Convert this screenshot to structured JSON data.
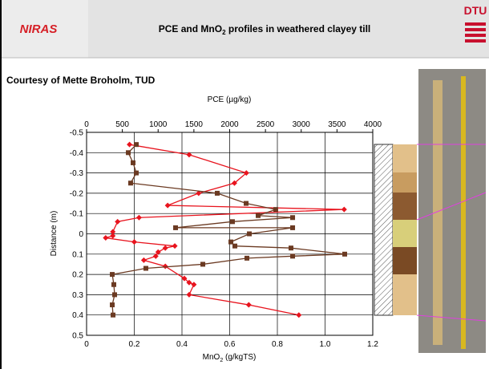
{
  "header": {
    "logo": "NIRAS",
    "title": [
      "PCE and MnO",
      "2",
      " profiles in weathered clayey till"
    ],
    "right_logo": "DTU"
  },
  "courtesy": "Courtesy of Mette Broholm, TUD",
  "chart_data": {
    "type": "line",
    "x_label": [
      "MnO",
      "2",
      " (g/kgTS)"
    ],
    "x2_label": "PCE (µg/kg)",
    "y_label": "Distance (m)",
    "xlim": [
      0,
      1.2
    ],
    "xticks": [
      0,
      0.2,
      0.4,
      0.6,
      0.8,
      {
        "value": 1,
        "label": "1.0"
      },
      1.2
    ],
    "x2lim": [
      0,
      4000
    ],
    "x2ticks": [
      0,
      500,
      1000,
      1500,
      2000,
      2500,
      3000,
      3500,
      4000
    ],
    "ylim": [
      -0.5,
      0.5
    ],
    "y_inverted": true,
    "yticks": [
      -0.5,
      -0.4,
      -0.3,
      -0.2,
      -0.1,
      0,
      0.1,
      0.2,
      0.3,
      0.4,
      0.5
    ],
    "grid": true,
    "series": [
      {
        "color": "#e8141e",
        "marker": "diamond",
        "axis": "x",
        "depth": [
          -0.44,
          -0.39,
          -0.3,
          -0.25,
          -0.2,
          -0.14,
          -0.12,
          -0.08,
          -0.06,
          -0.01,
          0.01,
          0.02,
          0.04,
          0.06,
          0.07,
          0.09,
          0.11,
          0.13,
          0.16,
          0.22,
          0.24,
          0.25,
          0.3,
          0.35,
          0.4
        ],
        "values": [
          0.18,
          0.43,
          0.67,
          0.62,
          0.47,
          0.34,
          1.08,
          0.22,
          0.13,
          0.11,
          0.11,
          0.08,
          0.2,
          0.37,
          0.33,
          0.3,
          0.29,
          0.24,
          0.33,
          0.41,
          0.43,
          0.45,
          0.43,
          0.68,
          0.89
        ]
      },
      {
        "color": "#6b3a22",
        "marker": "square",
        "axis": "x2",
        "depth": [
          -0.44,
          -0.4,
          -0.35,
          -0.3,
          -0.25,
          -0.2,
          -0.15,
          -0.12,
          -0.09,
          -0.08,
          -0.06,
          -0.03,
          -0.03,
          0.0,
          0.04,
          0.06,
          0.07,
          0.1,
          0.11,
          0.12,
          0.15,
          0.17,
          0.2,
          0.25,
          0.3,
          0.35,
          0.4
        ],
        "values": [
          695,
          583,
          650,
          695,
          616,
          1826,
          2230,
          2644,
          2398,
          2880,
          2039,
          1244,
          2880,
          2275,
          2017,
          2073,
          2857,
          3608,
          2880,
          2241,
          1625,
          829,
          359,
          381,
          392,
          359,
          370
        ]
      }
    ]
  }
}
